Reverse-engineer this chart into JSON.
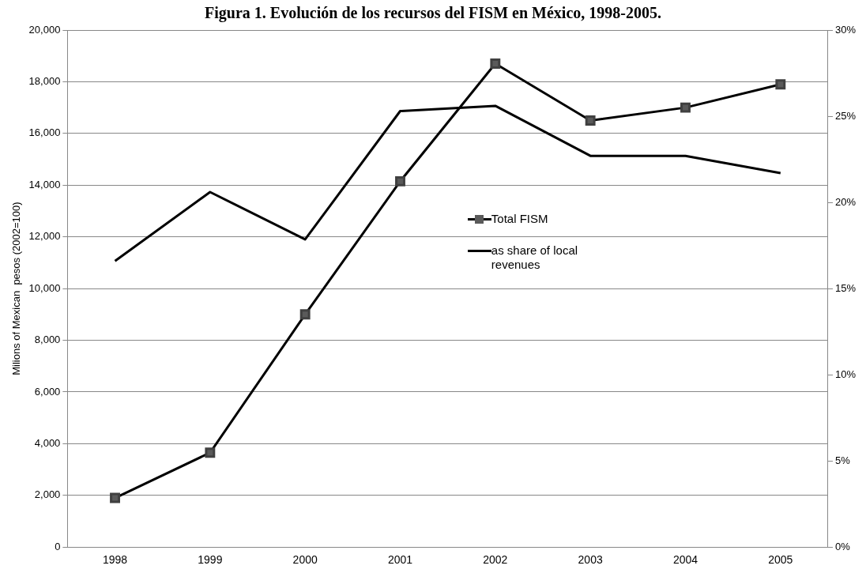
{
  "chart_data": {
    "type": "line",
    "title": "Figura 1. Evolución de los recursos del FISM en México, 1998-2005.",
    "ylabel": "Milions of Mexican  pesos (2002=100)",
    "categories": [
      "1998",
      "1999",
      "2000",
      "2001",
      "2002",
      "2003",
      "2004",
      "2005"
    ],
    "series": [
      {
        "name": "Total FISM",
        "color": "#000000",
        "marker": "square",
        "values": [
          1900,
          3650,
          9000,
          14150,
          18700,
          16500,
          17000,
          17900
        ]
      },
      {
        "name": "as share of local revenues",
        "color": "#000000",
        "marker": "none",
        "axis": "y2",
        "values": [
          16.6,
          20.6,
          17.85,
          25.3,
          25.6,
          22.7,
          22.7,
          21.7
        ]
      }
    ],
    "ylim": [
      0,
      20000
    ],
    "yticks": [
      {
        "value": 0,
        "label": "0"
      },
      {
        "value": 2000,
        "label": "2,000"
      },
      {
        "value": 4000,
        "label": "4,000"
      },
      {
        "value": 6000,
        "label": "6,000"
      },
      {
        "value": 8000,
        "label": "8,000"
      },
      {
        "value": 10000,
        "label": "10,000"
      },
      {
        "value": 12000,
        "label": "12,000"
      },
      {
        "value": 14000,
        "label": "14,000"
      },
      {
        "value": 16000,
        "label": "16,000"
      },
      {
        "value": 18000,
        "label": "18,000"
      },
      {
        "value": 20000,
        "label": "20,000"
      }
    ],
    "y2lim": [
      0,
      30
    ],
    "y2ticks": [
      {
        "value": 0,
        "label": "0%"
      },
      {
        "value": 5,
        "label": "5%"
      },
      {
        "value": 10,
        "label": "10%"
      },
      {
        "value": 15,
        "label": "15%"
      },
      {
        "value": 20,
        "label": "20%"
      },
      {
        "value": 25,
        "label": "25%"
      },
      {
        "value": 30,
        "label": "30%"
      }
    ],
    "grid": "y",
    "legend": "center"
  }
}
